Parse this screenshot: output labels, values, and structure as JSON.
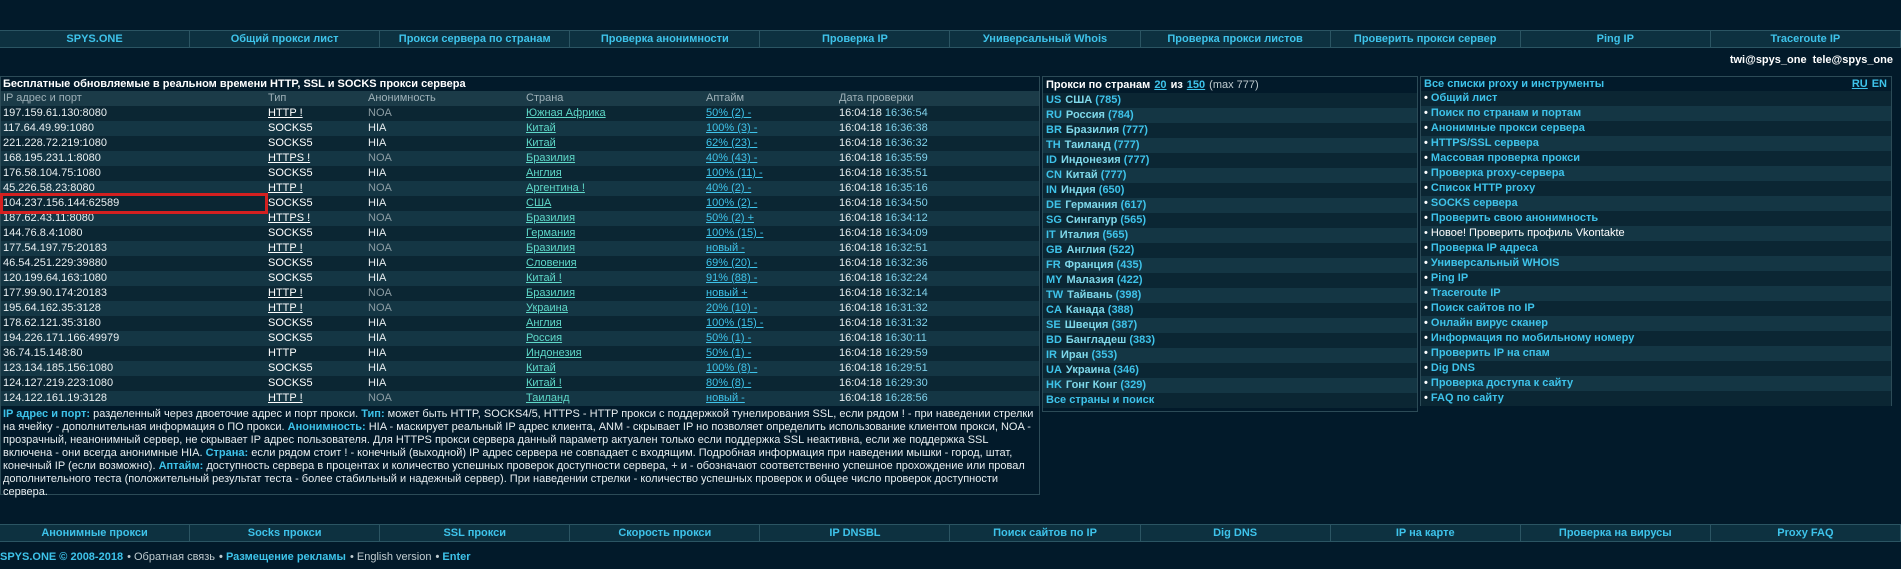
{
  "top_nav": [
    "SPYS.ONE",
    "Общий прокси лист",
    "Прокси сервера по странам",
    "Проверка анонимности",
    "Проверка IP",
    "Универсальный Whois",
    "Проверка прокси листов",
    "Проверить прокси сервер",
    "Ping IP",
    "Traceroute IP"
  ],
  "contacts": [
    "twi@spys_one",
    "tele@spys_one"
  ],
  "table": {
    "title": "Бесплатные обновляемые в реальном времени HTTP, SSL и SOCKS прокси сервера",
    "headers": [
      "IP адрес и порт",
      "Тип",
      "Анонимность",
      "Страна",
      "Аптайм",
      "Дата проверки"
    ],
    "rows": [
      {
        "ip": "197.159.61.130:8080",
        "type": "HTTP !",
        "anonymity": "NOA",
        "country": "Южная Африка",
        "uptime": "50% (2) -",
        "checked": "16:04:18",
        "time": "16:36:54"
      },
      {
        "ip": "117.64.49.99:1080",
        "type": "SOCKS5",
        "anonymity": "HIA",
        "country": "Китай",
        "uptime": "100% (3) -",
        "checked": "16:04:18",
        "time": "16:36:38"
      },
      {
        "ip": "221.228.72.219:1080",
        "type": "SOCKS5",
        "anonymity": "HIA",
        "country": "Китай",
        "uptime": "62% (23) -",
        "checked": "16:04:18",
        "time": "16:36:32"
      },
      {
        "ip": "168.195.231.1:8080",
        "type": "HTTPS !",
        "anonymity": "NOA",
        "country": "Бразилия",
        "uptime": "40% (43) -",
        "checked": "16:04:18",
        "time": "16:35:59"
      },
      {
        "ip": "176.58.104.75:1080",
        "type": "SOCKS5",
        "anonymity": "HIA",
        "country": "Англия",
        "uptime": "100% (11) -",
        "checked": "16:04:18",
        "time": "16:35:51"
      },
      {
        "ip": "45.226.58.23:8080",
        "type": "HTTP !",
        "anonymity": "NOA",
        "country": "Аргентина !",
        "uptime": "40% (2) -",
        "checked": "16:04:18",
        "time": "16:35:16"
      },
      {
        "ip": "104.237.156.144:62589",
        "type": "SOCKS5",
        "anonymity": "HIA",
        "country": "США",
        "uptime": "100% (2) -",
        "checked": "16:04:18",
        "time": "16:34:50"
      },
      {
        "ip": "187.62.43.11:8080",
        "type": "HTTPS !",
        "anonymity": "NOA",
        "country": "Бразилия",
        "uptime": "50% (2) +",
        "checked": "16:04:18",
        "time": "16:34:12"
      },
      {
        "ip": "144.76.8.4:1080",
        "type": "SOCKS5",
        "anonymity": "HIA",
        "country": "Германия",
        "uptime": "100% (15) -",
        "checked": "16:04:18",
        "time": "16:34:09"
      },
      {
        "ip": "177.54.197.75:20183",
        "type": "HTTP !",
        "anonymity": "NOA",
        "country": "Бразилия",
        "uptime": "новый -",
        "checked": "16:04:18",
        "time": "16:32:51"
      },
      {
        "ip": "46.54.251.229:39880",
        "type": "SOCKS5",
        "anonymity": "HIA",
        "country": "Словения",
        "uptime": "69% (20) -",
        "checked": "16:04:18",
        "time": "16:32:36"
      },
      {
        "ip": "120.199.64.163:1080",
        "type": "SOCKS5",
        "anonymity": "HIA",
        "country": "Китай !",
        "uptime": "91% (88) -",
        "checked": "16:04:18",
        "time": "16:32:24"
      },
      {
        "ip": "177.99.90.174:20183",
        "type": "HTTP !",
        "anonymity": "NOA",
        "country": "Бразилия",
        "uptime": "новый +",
        "checked": "16:04:18",
        "time": "16:32:14"
      },
      {
        "ip": "195.64.162.35:3128",
        "type": "HTTP !",
        "anonymity": "NOA",
        "country": "Украина",
        "uptime": "20% (10) -",
        "checked": "16:04:18",
        "time": "16:31:32"
      },
      {
        "ip": "178.62.121.35:3180",
        "type": "SOCKS5",
        "anonymity": "HIA",
        "country": "Англия",
        "uptime": "100% (15) -",
        "checked": "16:04:18",
        "time": "16:31:32"
      },
      {
        "ip": "194.226.171.166:49979",
        "type": "SOCKS5",
        "anonymity": "HIA",
        "country": "Россия",
        "uptime": "50% (1) -",
        "checked": "16:04:18",
        "time": "16:30:11"
      },
      {
        "ip": "36.74.15.148:80",
        "type": "HTTP",
        "anonymity": "HIA",
        "country": "Индонезия",
        "uptime": "50% (1) -",
        "checked": "16:04:18",
        "time": "16:29:59"
      },
      {
        "ip": "123.134.185.156:1080",
        "type": "SOCKS5",
        "anonymity": "HIA",
        "country": "Китай",
        "uptime": "100% (8) -",
        "checked": "16:04:18",
        "time": "16:29:51"
      },
      {
        "ip": "124.127.219.223:1080",
        "type": "SOCKS5",
        "anonymity": "HIA",
        "country": "Китай !",
        "uptime": "80% (8) -",
        "checked": "16:04:18",
        "time": "16:29:30"
      },
      {
        "ip": "124.122.161.19:3128",
        "type": "HTTP !",
        "anonymity": "NOA",
        "country": "Таиланд",
        "uptime": "новый -",
        "checked": "16:04:18",
        "time": "16:28:56"
      }
    ],
    "legend": [
      {
        "term": "IP адрес и порт:",
        "text": "разделенный через двоеточие адрес и порт прокси."
      },
      {
        "term": "Тип:",
        "text": "может быть HTTP, SOCKS4/5, HTTPS - HTTP прокси с поддержкой тунелирования SSL, если рядом ! - при наведении стрелки на ячейку - дополнительная информация о ПО прокси."
      },
      {
        "term": "Анонимность:",
        "text": "HIA - маскирует реальный IP адрес клиента, ANM - скрывает IP но позволяет определить использование клиентом прокси, NOA - прозрачный, неанонимный сервер, не скрывает IP адрес пользователя. Для HTTPS прокси сервера данный параметр актуален только если поддержка SSL неактивна, если же поддержка SSL включена - они всегда анонимные HIA."
      },
      {
        "term": "Страна:",
        "text": "если рядом стоит ! - конечный (выходной) IP адрес сервера не совпадает с входящим. Подробная информация при наведении мышки - город, штат, конечный IP (если возможно)."
      },
      {
        "term": "Аптайм:",
        "text": "доступность сервера в процентах и количество успешных проверок доступности сервера, + и - обозначают соответственно успешное прохождение или провал дополнительного теста (положительный результат теста - более стабильный и надежный сервер). При наведении стрелки - количество успешных проверок и общее число проверок доступности сервера."
      }
    ]
  },
  "countries": {
    "header": [
      "Прокси по странам",
      "20",
      "из",
      "150",
      "(max 777)"
    ],
    "items": [
      {
        "code": "US",
        "name": "США",
        "count": "(785)"
      },
      {
        "code": "RU",
        "name": "Россия",
        "count": "(784)"
      },
      {
        "code": "BR",
        "name": "Бразилия",
        "count": "(777)"
      },
      {
        "code": "TH",
        "name": "Таиланд",
        "count": "(777)"
      },
      {
        "code": "ID",
        "name": "Индонезия",
        "count": "(777)"
      },
      {
        "code": "CN",
        "name": "Китай",
        "count": "(777)"
      },
      {
        "code": "IN",
        "name": "Индия",
        "count": "(650)"
      },
      {
        "code": "DE",
        "name": "Германия",
        "count": "(617)"
      },
      {
        "code": "SG",
        "name": "Сингапур",
        "count": "(565)"
      },
      {
        "code": "IT",
        "name": "Италия",
        "count": "(565)"
      },
      {
        "code": "GB",
        "name": "Англия",
        "count": "(522)"
      },
      {
        "code": "FR",
        "name": "Франция",
        "count": "(435)"
      },
      {
        "code": "MY",
        "name": "Малазия",
        "count": "(422)"
      },
      {
        "code": "TW",
        "name": "Тайвань",
        "count": "(398)"
      },
      {
        "code": "CA",
        "name": "Канада",
        "count": "(388)"
      },
      {
        "code": "SE",
        "name": "Швеция",
        "count": "(387)"
      },
      {
        "code": "BD",
        "name": "Бангладеш",
        "count": "(383)"
      },
      {
        "code": "IR",
        "name": "Иран",
        "count": "(353)"
      },
      {
        "code": "UA",
        "name": "Украина",
        "count": "(346)"
      },
      {
        "code": "HK",
        "name": "Гонг Конг",
        "count": "(329)"
      }
    ],
    "all": "Все страны и поиск"
  },
  "tools": {
    "header": "Все списки proxy и инструменты",
    "languages": [
      "RU",
      "EN"
    ],
    "items": [
      "Общий лист",
      "Поиск по странам и портам",
      "Анонимные прокси сервера",
      "HTTPS/SSL сервера",
      "Массовая проверка прокси",
      "Проверка proxy-сервера",
      "Список HTTP proxy",
      "SOCKS сервера",
      "Проверить свою анонимность",
      "Новое! Проверить профиль Vkontakte",
      "Проверка IP адреса",
      "Универсальный WHOIS",
      "Ping IP",
      "Traceroute IP",
      "Поиск сайтов по IP",
      "Онлайн вирус сканер",
      "Информация по мобильному номеру",
      "Проверить IP на спам",
      "Dig DNS",
      "Проверка доступа к сайту",
      "FAQ по сайту"
    ]
  },
  "bottom_nav": [
    "Анонимные прокси",
    "Socks прокси",
    "SSL прокси",
    "Скорость прокси",
    "IP DNSBL",
    "Поиск сайтов по IP",
    "Dig DNS",
    "IP на карте",
    "Проверка на вирусы",
    "Proxy FAQ"
  ],
  "footer": [
    "SPYS.ONE © 2008-2018",
    "Обратная связь",
    "Размещение рекламы",
    "English version",
    "Enter"
  ]
}
